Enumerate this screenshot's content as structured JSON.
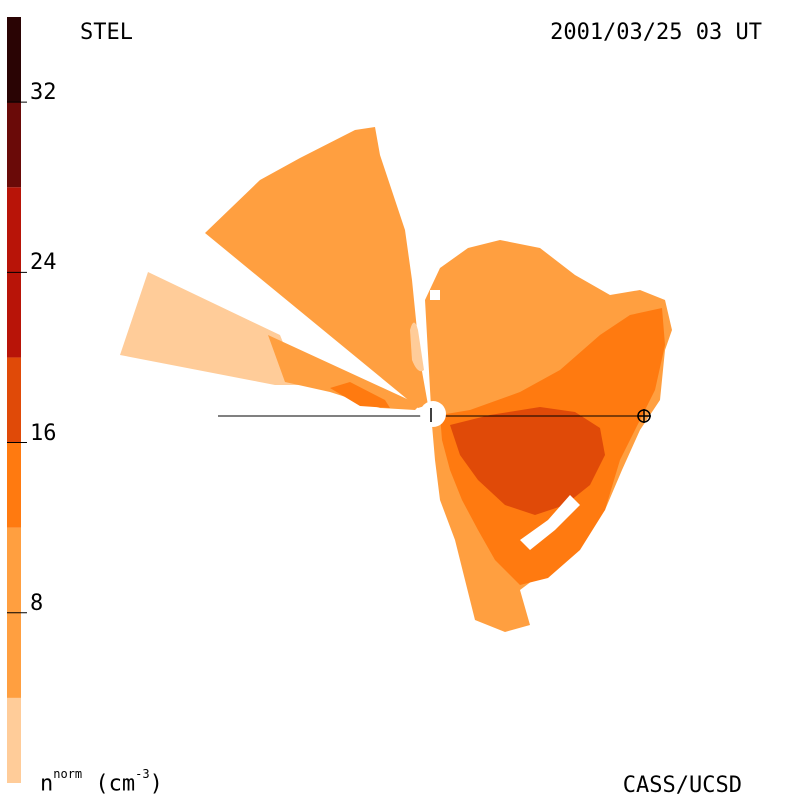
{
  "title": {
    "observatory": "STEL",
    "timestamp": "2001/03/25 03 UT",
    "credit": "CASS/UCSD"
  },
  "colorbar": {
    "quantity_symbol": "n",
    "quantity_superscript": "norm",
    "unit_prefix": "(cm",
    "unit_superscript": "-3",
    "unit_suffix": ")",
    "range": [
      0,
      36
    ],
    "ticks": [
      "8",
      "16",
      "24",
      "32"
    ],
    "levels": [
      {
        "min": 0,
        "max": 4,
        "color": "#ffcc99"
      },
      {
        "min": 4,
        "max": 12,
        "color": "#ff9f40"
      },
      {
        "min": 12,
        "max": 16,
        "color": "#ff7a10"
      },
      {
        "min": 16,
        "max": 20,
        "color": "#e04a08"
      },
      {
        "min": 20,
        "max": 28,
        "color": "#b81408"
      },
      {
        "min": 28,
        "max": 32,
        "color": "#6a0a08"
      },
      {
        "min": 32,
        "max": 36,
        "color": "#2a0404"
      }
    ]
  },
  "colors": {
    "sun": "#ffffff",
    "axis": "#000000"
  },
  "markers": {
    "earth_icon": "earth-symbol-icon",
    "sun_icon": "sun-disk-icon"
  }
}
